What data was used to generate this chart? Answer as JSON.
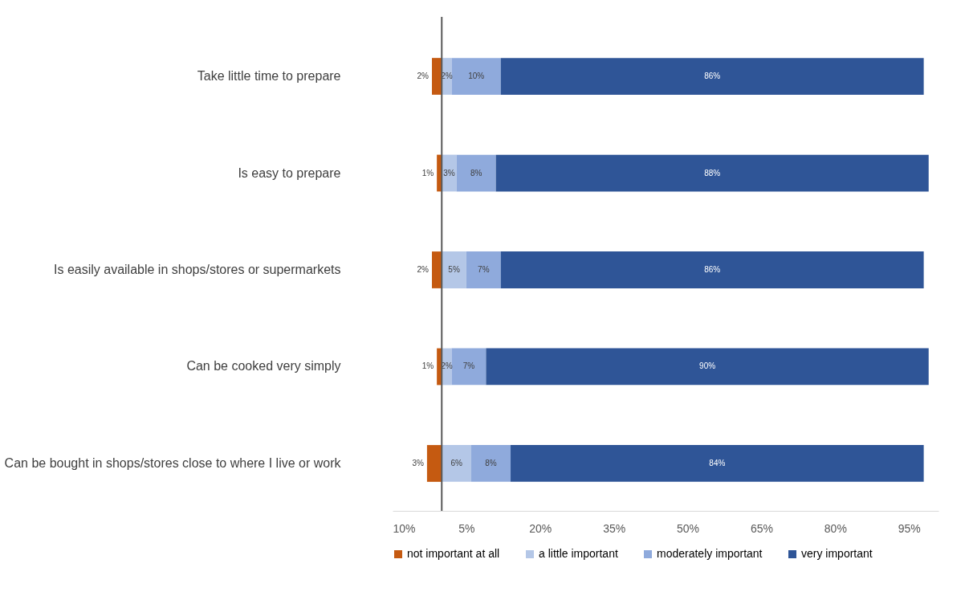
{
  "chart_data": {
    "type": "bar",
    "orientation": "horizontal",
    "stacked": true,
    "categories": [
      "Take little time to prepare",
      "Is easy to prepare",
      "Is easily available in shops/stores or supermarkets",
      "Can be cooked very simply",
      "Can be bought in shops/stores close to where I live or work"
    ],
    "series": [
      {
        "name": "not important at all",
        "color": "#c55a11",
        "values": [
          2,
          1,
          2,
          1,
          3
        ],
        "base": [
          -2,
          -1,
          -2,
          -1,
          -3
        ],
        "value_labels": [
          "2%",
          "1%",
          "2%",
          "1%",
          "3%"
        ]
      },
      {
        "name": "a little important",
        "color": "#b4c7e7",
        "values": [
          2,
          3,
          5,
          2,
          6
        ],
        "value_labels": [
          "2%",
          "3%",
          "5%",
          "2%",
          "6%"
        ]
      },
      {
        "name": "moderately important",
        "color": "#8faadc",
        "values": [
          10,
          8,
          7,
          7,
          8
        ],
        "value_labels": [
          "10%",
          "8%",
          "7%",
          "7%",
          "8%"
        ]
      },
      {
        "name": "very important",
        "color": "#2f5597",
        "values": [
          86,
          88,
          86,
          90,
          84
        ],
        "value_labels": [
          "86%",
          "88%",
          "86%",
          "90%",
          "84%"
        ]
      }
    ],
    "xlim": [
      -10,
      101
    ],
    "xticks": [
      {
        "value": -10,
        "label": "10%"
      },
      {
        "value": 5,
        "label": "5%"
      },
      {
        "value": 20,
        "label": "20%"
      },
      {
        "value": 35,
        "label": "35%"
      },
      {
        "value": 50,
        "label": "50%"
      },
      {
        "value": 65,
        "label": "65%"
      },
      {
        "value": 80,
        "label": "80%"
      },
      {
        "value": 95,
        "label": "95%"
      }
    ],
    "ref_lines": [
      {
        "axis": "x",
        "value": 0,
        "color": "#595959"
      }
    ],
    "legend": "bottom",
    "grid": false
  }
}
